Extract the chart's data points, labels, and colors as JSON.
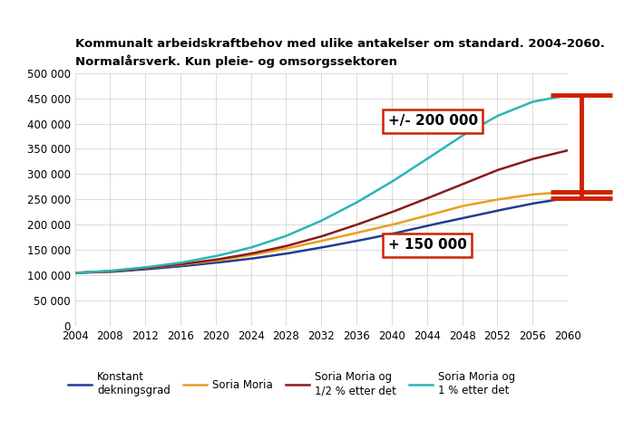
{
  "title_line1": "Kommunalt arbeidskraftbehov med ulike antakelser om standard. 2004-2060.",
  "title_line2": "Normalårsverk. Kun pleie- og omsorgssektoren",
  "years": [
    2004,
    2008,
    2012,
    2016,
    2020,
    2024,
    2028,
    2032,
    2036,
    2040,
    2044,
    2048,
    2052,
    2056,
    2060
  ],
  "konstant": [
    105000,
    107000,
    112000,
    118000,
    125000,
    133000,
    143000,
    155000,
    168000,
    182000,
    198000,
    213000,
    228000,
    242000,
    253000
  ],
  "soria_moria": [
    105000,
    108000,
    114000,
    121000,
    129000,
    140000,
    153000,
    168000,
    184000,
    200000,
    218000,
    237000,
    250000,
    260000,
    265000
  ],
  "soria_moria_half": [
    105000,
    108000,
    114000,
    122000,
    131000,
    143000,
    158000,
    177000,
    200000,
    225000,
    252000,
    280000,
    308000,
    330000,
    347000
  ],
  "soria_moria_one": [
    105000,
    109000,
    116000,
    125000,
    138000,
    155000,
    178000,
    208000,
    244000,
    285000,
    330000,
    376000,
    415000,
    443000,
    456000
  ],
  "line_colors": {
    "konstant": "#1f3d91",
    "soria_moria": "#e8a020",
    "soria_moria_half": "#8b1a1a",
    "soria_moria_one": "#2ab5b5"
  },
  "legend_labels": [
    "Konstant\ndekningsgrad",
    "Soria Moria",
    "Soria Moria og\n1/2 % etter det",
    "Soria Moria og\n1 % etter det"
  ],
  "annotation_upper": "+/- 200 000",
  "annotation_lower": "+ 150 000",
  "arrow_color": "#cc2200",
  "ylim": [
    0,
    500000
  ],
  "yticks": [
    0,
    50000,
    100000,
    150000,
    200000,
    250000,
    300000,
    350000,
    400000,
    450000,
    500000
  ],
  "ytick_labels": [
    "0",
    "50 000",
    "100 000",
    "150 000",
    "200 000",
    "250 000",
    "300 000",
    "350 000",
    "400 000",
    "450 000",
    "500 000"
  ],
  "xticks": [
    2004,
    2008,
    2012,
    2016,
    2020,
    2024,
    2028,
    2032,
    2036,
    2040,
    2044,
    2048,
    2052,
    2056,
    2060
  ],
  "background_color": "#ffffff",
  "grid_color": "#cccccc",
  "title_fontsize": 9.5,
  "tick_fontsize": 8.5
}
